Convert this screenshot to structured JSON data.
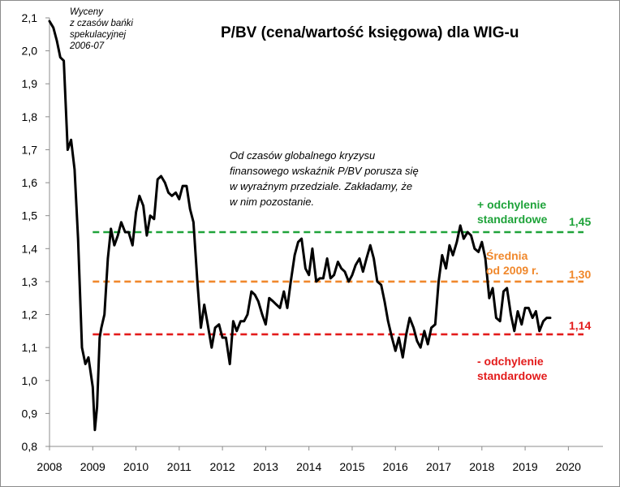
{
  "chart_data": {
    "type": "line",
    "title": "P/BV (cena/wartość księgowa) dla WIG-u",
    "xlabel": "",
    "ylabel": "",
    "xlim": [
      2008,
      2020.8
    ],
    "ylim": [
      0.8,
      2.1
    ],
    "x_ticks": [
      "2008",
      "2009",
      "2010",
      "2011",
      "2012",
      "2013",
      "2014",
      "2015",
      "2016",
      "2017",
      "2018",
      "2019",
      "2020"
    ],
    "y_ticks": [
      "0,8",
      "0,9",
      "1,0",
      "1,1",
      "1,2",
      "1,3",
      "1,4",
      "1,5",
      "1,6",
      "1,7",
      "1,8",
      "1,9",
      "2,0",
      "2,1"
    ],
    "grid": false,
    "series": [
      {
        "color": "#000000",
        "x": [
          2008.0,
          2008.09,
          2008.17,
          2008.25,
          2008.33,
          2008.42,
          2008.5,
          2008.58,
          2008.66,
          2008.75,
          2008.83,
          2008.9,
          2009.0,
          2009.05,
          2009.1,
          2009.16,
          2009.2,
          2009.27,
          2009.35,
          2009.42,
          2009.5,
          2009.58,
          2009.66,
          2009.75,
          2009.83,
          2009.92,
          2010.0,
          2010.08,
          2010.17,
          2010.25,
          2010.33,
          2010.42,
          2010.5,
          2010.58,
          2010.67,
          2010.75,
          2010.83,
          2010.92,
          2011.0,
          2011.08,
          2011.17,
          2011.25,
          2011.33,
          2011.42,
          2011.5,
          2011.58,
          2011.66,
          2011.75,
          2011.83,
          2011.92,
          2012.0,
          2012.08,
          2012.17,
          2012.25,
          2012.33,
          2012.42,
          2012.5,
          2012.58,
          2012.67,
          2012.75,
          2012.83,
          2012.92,
          2013.0,
          2013.08,
          2013.17,
          2013.25,
          2013.33,
          2013.42,
          2013.5,
          2013.58,
          2013.67,
          2013.75,
          2013.83,
          2013.92,
          2014.0,
          2014.08,
          2014.17,
          2014.25,
          2014.33,
          2014.42,
          2014.5,
          2014.58,
          2014.67,
          2014.75,
          2014.83,
          2014.92,
          2015.0,
          2015.08,
          2015.17,
          2015.25,
          2015.33,
          2015.42,
          2015.5,
          2015.58,
          2015.67,
          2015.75,
          2015.83,
          2015.92,
          2016.0,
          2016.08,
          2016.17,
          2016.25,
          2016.33,
          2016.42,
          2016.5,
          2016.58,
          2016.67,
          2016.75,
          2016.83,
          2016.92,
          2017.0,
          2017.08,
          2017.17,
          2017.25,
          2017.33,
          2017.42,
          2017.5,
          2017.58,
          2017.67,
          2017.75,
          2017.83,
          2017.92,
          2018.0,
          2018.08,
          2018.17,
          2018.25,
          2018.33,
          2018.42,
          2018.5,
          2018.58,
          2018.67,
          2018.75,
          2018.83,
          2018.92,
          2019.0,
          2019.08,
          2019.17,
          2019.25,
          2019.33,
          2019.42,
          2019.5,
          2019.58
        ],
        "values": [
          2.09,
          2.07,
          2.03,
          1.98,
          1.97,
          1.7,
          1.73,
          1.64,
          1.43,
          1.1,
          1.05,
          1.07,
          0.98,
          0.85,
          0.92,
          1.13,
          1.16,
          1.2,
          1.37,
          1.46,
          1.41,
          1.44,
          1.48,
          1.45,
          1.45,
          1.41,
          1.51,
          1.56,
          1.53,
          1.44,
          1.5,
          1.49,
          1.61,
          1.62,
          1.6,
          1.57,
          1.56,
          1.57,
          1.55,
          1.59,
          1.59,
          1.52,
          1.48,
          1.3,
          1.16,
          1.23,
          1.17,
          1.1,
          1.16,
          1.17,
          1.13,
          1.13,
          1.05,
          1.18,
          1.15,
          1.18,
          1.18,
          1.2,
          1.27,
          1.26,
          1.24,
          1.2,
          1.17,
          1.25,
          1.24,
          1.23,
          1.22,
          1.27,
          1.22,
          1.3,
          1.38,
          1.42,
          1.43,
          1.34,
          1.32,
          1.4,
          1.3,
          1.31,
          1.31,
          1.37,
          1.31,
          1.32,
          1.36,
          1.34,
          1.33,
          1.3,
          1.32,
          1.35,
          1.37,
          1.33,
          1.37,
          1.41,
          1.37,
          1.3,
          1.29,
          1.24,
          1.18,
          1.13,
          1.09,
          1.13,
          1.07,
          1.14,
          1.19,
          1.16,
          1.12,
          1.1,
          1.15,
          1.11,
          1.16,
          1.17,
          1.3,
          1.38,
          1.34,
          1.41,
          1.38,
          1.42,
          1.47,
          1.43,
          1.45,
          1.44,
          1.4,
          1.39,
          1.42,
          1.37,
          1.25,
          1.28,
          1.19,
          1.18,
          1.27,
          1.28,
          1.2,
          1.15,
          1.21,
          1.17,
          1.22,
          1.22,
          1.19,
          1.21,
          1.15,
          1.18,
          1.19,
          1.19
        ]
      }
    ],
    "reference_lines": [
      {
        "value": 1.45,
        "color": "#1fa33a",
        "label": "1,45"
      },
      {
        "value": 1.3,
        "color": "#f0882c",
        "label": "1,30"
      },
      {
        "value": 1.14,
        "color": "#e31b1b",
        "label": "1,14"
      }
    ],
    "annotations": {
      "bubble_note": [
        "Wyceny",
        "z czasów bańki",
        "spekulacyjnej",
        "2006-07"
      ],
      "main_note": [
        "Od czasów globalnego kryzysu",
        "finansowego wskaźnik P/BV porusza się",
        "w wyraźnym przedziale. Zakładamy, że",
        "w nim pozostanie."
      ],
      "plus_label": [
        "+ odchylenie",
        "standardowe"
      ],
      "mean_label": [
        "Średnia",
        "od 2009 r."
      ],
      "minus_label": [
        "- odchylenie",
        "standardowe"
      ]
    }
  }
}
